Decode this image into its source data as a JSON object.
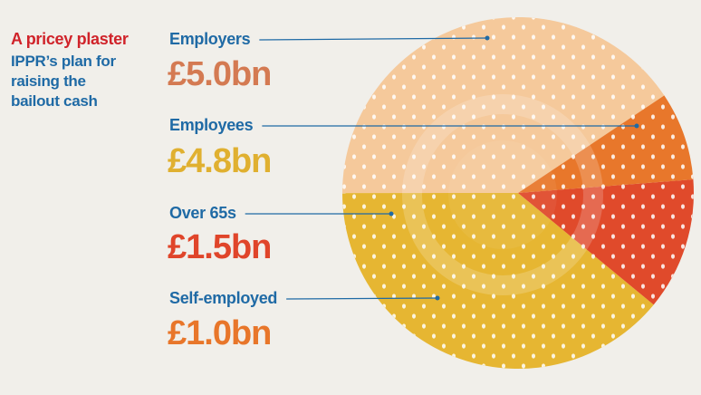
{
  "chart_data": {
    "type": "pie",
    "title": "A pricey plaster",
    "subtitle": "IPPR’s plan for raising the bailout cash",
    "categories": [
      "Employers",
      "Employees",
      "Over 65s",
      "Self-employed"
    ],
    "values": [
      5.0,
      4.8,
      1.5,
      1.0
    ],
    "value_labels": [
      "£5.0bn",
      "£4.8bn",
      "£1.5bn",
      "£1.0bn"
    ],
    "colors": [
      "#f5c99b",
      "#e6b632",
      "#e04a2b",
      "#e8772b"
    ],
    "value_colors": [
      "#d47a52",
      "#e0b030",
      "#e0452a",
      "#e8762a"
    ]
  }
}
